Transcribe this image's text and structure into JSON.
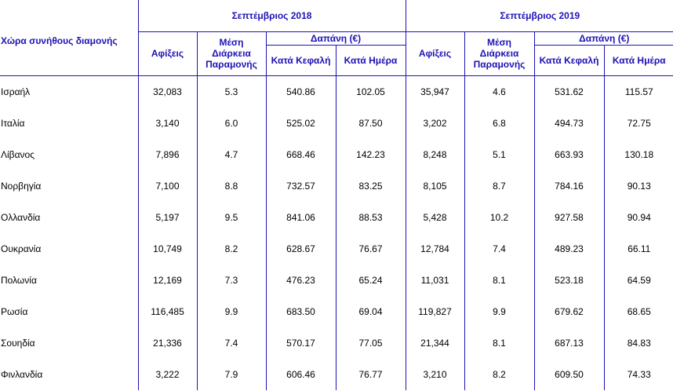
{
  "header": {
    "country_col": "Χώρα συνήθους διαμονής",
    "periods": [
      "Σεπτέμβριος 2018",
      "Σεπτέμβριος 2019"
    ],
    "arrivals": "Αφίξεις",
    "avg_stay_lines": [
      "Μέση",
      "Διάρκεια",
      "Παραμονής"
    ],
    "spending": "Δαπάνη (€)",
    "per_capita": "Κατά Κεφαλή",
    "per_day": "Κατά Ημέρα"
  },
  "rows": [
    {
      "country": "Ισραήλ",
      "v": [
        "32,083",
        "5.3",
        "540.86",
        "102.05",
        "35,947",
        "4.6",
        "531.62",
        "115.57"
      ]
    },
    {
      "country": "Ιταλία",
      "v": [
        "3,140",
        "6.0",
        "525.02",
        "87.50",
        "3,202",
        "6.8",
        "494.73",
        "72.75"
      ]
    },
    {
      "country": "Λίβανος",
      "v": [
        "7,896",
        "4.7",
        "668.46",
        "142.23",
        "8,248",
        "5.1",
        "663.93",
        "130.18"
      ]
    },
    {
      "country": "Νορβηγία",
      "v": [
        "7,100",
        "8.8",
        "732.57",
        "83.25",
        "8,105",
        "8.7",
        "784.16",
        "90.13"
      ]
    },
    {
      "country": "Ολλανδία",
      "v": [
        "5,197",
        "9.5",
        "841.06",
        "88.53",
        "5,428",
        "10.2",
        "927.58",
        "90.94"
      ]
    },
    {
      "country": "Ουκρανία",
      "v": [
        "10,749",
        "8.2",
        "628.67",
        "76.67",
        "12,784",
        "7.4",
        "489.23",
        "66.11"
      ]
    },
    {
      "country": "Πολωνία",
      "v": [
        "12,169",
        "7.3",
        "476.23",
        "65.24",
        "11,031",
        "8.1",
        "523.18",
        "64.59"
      ]
    },
    {
      "country": "Ρωσία",
      "v": [
        "116,485",
        "9.9",
        "683.50",
        "69.04",
        "119,827",
        "9.9",
        "679.62",
        "68.65"
      ]
    },
    {
      "country": "Σουηδία",
      "v": [
        "21,336",
        "7.4",
        "570.17",
        "77.05",
        "21,344",
        "8.1",
        "687.13",
        "84.83"
      ]
    },
    {
      "country": "Φινλανδία",
      "v": [
        "3,222",
        "7.9",
        "606.46",
        "76.77",
        "3,210",
        "8.2",
        "609.50",
        "74.33"
      ]
    }
  ]
}
